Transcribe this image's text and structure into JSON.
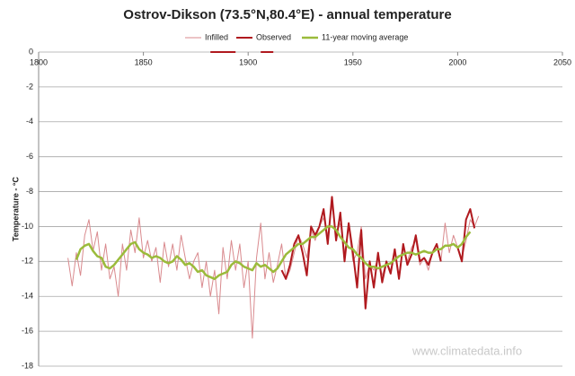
{
  "chart_data": {
    "type": "line",
    "title": "Ostrov-Dikson (73.5°N,80.4°E) - annual temperature",
    "y_label": "Temperature - °C",
    "annotation": "www.climatedata.info",
    "xlim": [
      1800,
      2050
    ],
    "xticks": [
      1800,
      1850,
      1900,
      1950,
      2000,
      2050
    ],
    "ylim": [
      -18,
      0
    ],
    "yticks": [
      0,
      -2,
      -4,
      -6,
      -8,
      -10,
      -12,
      -14,
      -16,
      -18
    ],
    "grid": true,
    "legend": "top",
    "x": [
      1814,
      1816,
      1818,
      1820,
      1822,
      1824,
      1826,
      1828,
      1830,
      1832,
      1834,
      1836,
      1838,
      1840,
      1842,
      1844,
      1846,
      1848,
      1850,
      1852,
      1854,
      1856,
      1858,
      1860,
      1862,
      1864,
      1866,
      1868,
      1870,
      1872,
      1874,
      1876,
      1878,
      1880,
      1882,
      1884,
      1886,
      1888,
      1890,
      1892,
      1894,
      1896,
      1898,
      1900,
      1902,
      1904,
      1906,
      1908,
      1910,
      1912,
      1914,
      1916,
      1918,
      1920,
      1922,
      1924,
      1926,
      1928,
      1930,
      1932,
      1934,
      1936,
      1938,
      1940,
      1942,
      1944,
      1946,
      1948,
      1950,
      1952,
      1954,
      1956,
      1958,
      1960,
      1962,
      1964,
      1966,
      1968,
      1970,
      1972,
      1974,
      1976,
      1978,
      1980,
      1982,
      1984,
      1986,
      1988,
      1990,
      1992,
      1994,
      1996,
      1998,
      2000,
      2002,
      2004,
      2006,
      2008,
      2010
    ],
    "series": [
      {
        "name": "Infilled",
        "color": "#d98a8e",
        "width": 1,
        "values": [
          -11.8,
          -13.4,
          -11.5,
          -12.8,
          -10.5,
          -9.6,
          -11.4,
          -10.3,
          -12.5,
          -11.0,
          -13.0,
          -12.3,
          -14.0,
          -11.0,
          -12.5,
          -10.2,
          -11.5,
          -9.5,
          -11.8,
          -10.8,
          -12.0,
          -11.2,
          -13.2,
          -10.9,
          -12.3,
          -11.0,
          -12.5,
          -10.5,
          -11.8,
          -13.0,
          -12.0,
          -11.5,
          -13.5,
          -12.0,
          -14.0,
          -12.5,
          -15.0,
          -11.2,
          -13.0,
          -10.8,
          -12.5,
          -11.0,
          -13.5,
          -12.0,
          -16.4,
          -11.8,
          -9.8,
          -13.0,
          -11.5,
          -13.2,
          -12.2,
          -11.0,
          -13.0,
          -12.5,
          -11.5,
          -10.5,
          -11.0,
          -11.8,
          -10.2,
          -10.8,
          -10.0,
          -9.5,
          -10.5,
          -8.8,
          -10.5,
          -9.8,
          -11.5,
          -10.0,
          -12.0,
          -11.5,
          -10.0,
          -13.0,
          -12.2,
          -12.5,
          -11.8,
          -12.8,
          -12.0,
          -12.5,
          -11.5,
          -12.8,
          -11.0,
          -12.0,
          -11.2,
          -10.8,
          -12.2,
          -11.8,
          -12.5,
          -11.5,
          -11.0,
          -12.0,
          -9.8,
          -11.5,
          -10.5,
          -11.2,
          -11.8,
          -10.8,
          -9.6,
          -10.0,
          -9.4
        ]
      },
      {
        "name": "Observed",
        "color": "#b0191e",
        "width": 2,
        "values": [
          null,
          null,
          null,
          null,
          null,
          null,
          null,
          null,
          null,
          null,
          null,
          null,
          null,
          null,
          null,
          null,
          null,
          null,
          null,
          null,
          null,
          null,
          null,
          null,
          null,
          null,
          null,
          null,
          null,
          null,
          null,
          null,
          null,
          null,
          0,
          0,
          0,
          0,
          0,
          0,
          0,
          null,
          null,
          null,
          null,
          null,
          0,
          0,
          0,
          0,
          null,
          -12.5,
          -13.0,
          -12.2,
          -11.0,
          -10.5,
          -11.5,
          -12.8,
          -10.0,
          -10.5,
          -10.0,
          -9.0,
          -11.0,
          -8.3,
          -10.8,
          -9.2,
          -12.0,
          -9.8,
          -11.5,
          -13.5,
          -10.2,
          -14.7,
          -12.0,
          -13.5,
          -11.5,
          -13.2,
          -12.0,
          -12.7,
          -11.3,
          -13.0,
          -11.0,
          -12.2,
          -11.6,
          -10.5,
          -12.0,
          -11.8,
          -12.2,
          -11.5,
          -11.0,
          -12.0,
          null,
          null,
          -11.0,
          -11.2,
          -12.0,
          -9.6,
          -9.0,
          -10.1,
          null
        ]
      },
      {
        "name": "11-year moving average",
        "color": "#9bbb3b",
        "width": 2.5,
        "values": [
          null,
          null,
          -11.9,
          -11.3,
          -11.1,
          -11.0,
          -11.4,
          -11.7,
          -11.8,
          -12.3,
          -12.4,
          -12.2,
          -11.9,
          -11.6,
          -11.3,
          -11.0,
          -10.9,
          -11.3,
          -11.5,
          -11.6,
          -11.8,
          -11.7,
          -11.8,
          -12.0,
          -12.1,
          -12.0,
          -11.7,
          -11.9,
          -12.2,
          -12.1,
          -12.3,
          -12.6,
          -12.5,
          -12.8,
          -12.9,
          -13.0,
          -12.8,
          -12.7,
          -12.6,
          -12.2,
          -12.0,
          -12.1,
          -12.3,
          -12.4,
          -12.5,
          -12.1,
          -12.3,
          -12.2,
          -12.4,
          -12.6,
          -12.4,
          -12.0,
          -11.6,
          -11.4,
          -11.2,
          -11.0,
          -11.0,
          -10.8,
          -10.6,
          -10.6,
          -10.4,
          -10.2,
          -10.0,
          -10.0,
          -10.2,
          -10.6,
          -10.9,
          -11.2,
          -11.3,
          -11.6,
          -11.8,
          -12.1,
          -12.3,
          -12.3,
          -12.4,
          -12.3,
          -12.2,
          -12.1,
          -11.9,
          -11.7,
          -11.6,
          -11.5,
          -11.5,
          -11.6,
          -11.5,
          -11.4,
          -11.5,
          -11.5,
          -11.3,
          -11.3,
          -11.1,
          -11.1,
          -11.0,
          -11.2,
          -11.0,
          -10.6,
          -10.3,
          null,
          null
        ]
      }
    ]
  }
}
